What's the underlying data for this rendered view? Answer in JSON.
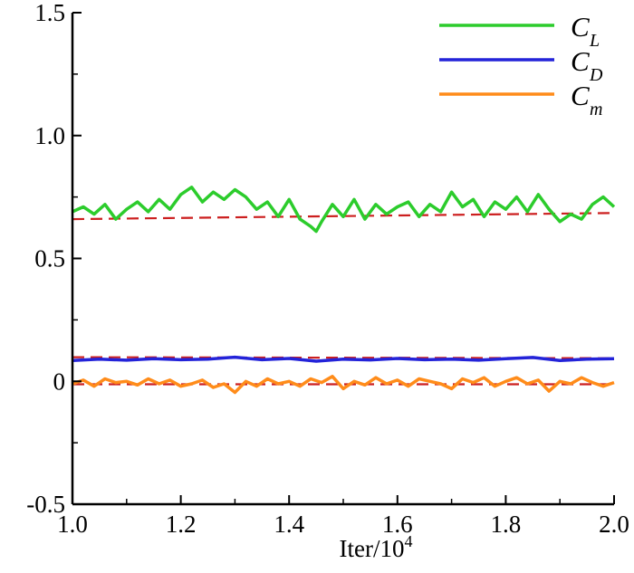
{
  "chart_data": {
    "type": "line",
    "xlabel": "Iter/10",
    "xlabel_superscript": "4",
    "xlim": [
      1.0,
      2.0
    ],
    "ylim": [
      -0.5,
      1.5
    ],
    "x_ticks": [
      {
        "value": 1.0,
        "label": "1.0"
      },
      {
        "value": 1.2,
        "label": "1.2"
      },
      {
        "value": 1.4,
        "label": "1.4"
      },
      {
        "value": 1.6,
        "label": "1.6"
      },
      {
        "value": 1.8,
        "label": "1.8"
      },
      {
        "value": 2.0,
        "label": "2.0"
      }
    ],
    "y_ticks": [
      {
        "value": -0.5,
        "label": "-0.5"
      },
      {
        "value": 0.0,
        "label": "0"
      },
      {
        "value": 0.5,
        "label": "0.5"
      },
      {
        "value": 1.0,
        "label": "1.0"
      },
      {
        "value": 1.5,
        "label": "1.5"
      }
    ],
    "grid": false,
    "legend_position": "top-right",
    "series": [
      {
        "name": "C_L",
        "legend_main": "C",
        "legend_sub": "L",
        "color": "#2ccc2c",
        "x": [
          1.0,
          1.02,
          1.04,
          1.06,
          1.08,
          1.1,
          1.12,
          1.14,
          1.16,
          1.18,
          1.2,
          1.22,
          1.24,
          1.26,
          1.28,
          1.3,
          1.32,
          1.34,
          1.36,
          1.38,
          1.4,
          1.42,
          1.44,
          1.45,
          1.46,
          1.48,
          1.5,
          1.52,
          1.54,
          1.56,
          1.58,
          1.6,
          1.62,
          1.64,
          1.66,
          1.68,
          1.7,
          1.72,
          1.74,
          1.76,
          1.78,
          1.8,
          1.82,
          1.84,
          1.86,
          1.88,
          1.9,
          1.92,
          1.94,
          1.96,
          1.98,
          2.0
        ],
        "values": [
          0.69,
          0.71,
          0.68,
          0.72,
          0.66,
          0.7,
          0.73,
          0.69,
          0.74,
          0.7,
          0.76,
          0.79,
          0.73,
          0.77,
          0.74,
          0.78,
          0.75,
          0.7,
          0.73,
          0.67,
          0.74,
          0.66,
          0.63,
          0.61,
          0.65,
          0.72,
          0.67,
          0.74,
          0.66,
          0.72,
          0.68,
          0.71,
          0.73,
          0.67,
          0.72,
          0.69,
          0.77,
          0.71,
          0.74,
          0.67,
          0.73,
          0.7,
          0.75,
          0.69,
          0.76,
          0.7,
          0.65,
          0.68,
          0.66,
          0.72,
          0.75,
          0.71
        ]
      },
      {
        "name": "C_D",
        "legend_main": "C",
        "legend_sub": "D",
        "color": "#2323d9",
        "x": [
          1.0,
          1.05,
          1.1,
          1.15,
          1.2,
          1.25,
          1.3,
          1.35,
          1.4,
          1.45,
          1.5,
          1.55,
          1.6,
          1.65,
          1.7,
          1.75,
          1.8,
          1.85,
          1.9,
          1.95,
          2.0
        ],
        "values": [
          0.085,
          0.09,
          0.086,
          0.092,
          0.088,
          0.09,
          0.098,
          0.088,
          0.093,
          0.082,
          0.09,
          0.087,
          0.093,
          0.088,
          0.09,
          0.086,
          0.092,
          0.097,
          0.085,
          0.09,
          0.092
        ]
      },
      {
        "name": "C_m",
        "legend_main": "C",
        "legend_sub": "m",
        "color": "#ff8c1a",
        "x": [
          1.0,
          1.02,
          1.04,
          1.06,
          1.08,
          1.1,
          1.12,
          1.14,
          1.16,
          1.18,
          1.2,
          1.22,
          1.24,
          1.26,
          1.28,
          1.3,
          1.32,
          1.34,
          1.36,
          1.38,
          1.4,
          1.42,
          1.44,
          1.46,
          1.48,
          1.5,
          1.52,
          1.54,
          1.56,
          1.58,
          1.6,
          1.62,
          1.64,
          1.66,
          1.68,
          1.7,
          1.72,
          1.74,
          1.76,
          1.78,
          1.8,
          1.82,
          1.84,
          1.86,
          1.88,
          1.9,
          1.92,
          1.94,
          1.96,
          1.98,
          2.0
        ],
        "values": [
          -0.01,
          0.005,
          -0.02,
          0.01,
          -0.005,
          0.0,
          -0.015,
          0.01,
          -0.01,
          0.005,
          -0.02,
          -0.01,
          0.005,
          -0.025,
          -0.01,
          -0.045,
          0.0,
          -0.02,
          0.01,
          -0.01,
          0.0,
          -0.02,
          0.01,
          -0.005,
          0.02,
          -0.03,
          0.0,
          -0.015,
          0.015,
          -0.01,
          0.005,
          -0.02,
          0.01,
          0.0,
          -0.01,
          -0.03,
          0.01,
          -0.005,
          0.015,
          -0.02,
          0.0,
          0.015,
          -0.01,
          0.005,
          -0.04,
          0.0,
          -0.01,
          0.015,
          -0.005,
          -0.02,
          -0.005
        ]
      }
    ],
    "reference_lines": [
      {
        "name": "C_L reference",
        "color": "#cc1f1f",
        "dashed": true,
        "x": [
          1.0,
          2.0
        ],
        "values": [
          0.66,
          0.685
        ]
      },
      {
        "name": "C_D reference",
        "color": "#cc1f1f",
        "dashed": true,
        "x": [
          1.0,
          2.0
        ],
        "values": [
          0.098,
          0.094
        ]
      },
      {
        "name": "C_m reference",
        "color": "#cc1f1f",
        "dashed": true,
        "x": [
          1.0,
          2.0
        ],
        "values": [
          -0.012,
          -0.012
        ]
      }
    ]
  }
}
